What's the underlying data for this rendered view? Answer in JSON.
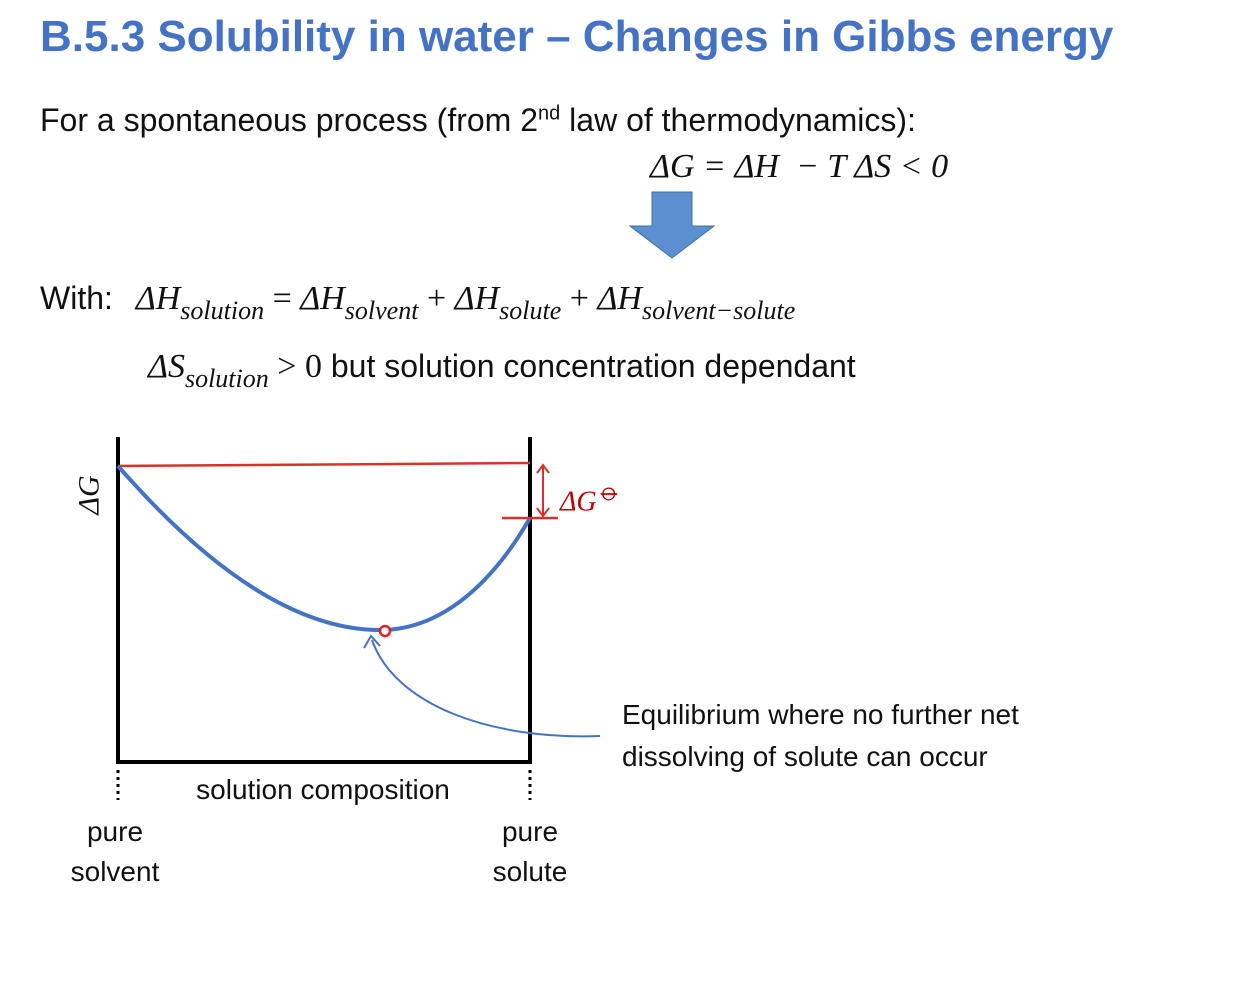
{
  "title": "B.5.3 Solubility in water – Changes in Gibbs energy",
  "intro": {
    "text": "For a spontaneous process (from 2",
    "sup": "nd",
    "after": " law of thermodynamics):"
  },
  "equation": "ΔG = ΔH  − T ΔS < 0",
  "with_label": "With:",
  "enthalpy": {
    "terms": [
      {
        "symbol": "ΔH",
        "sub": "solution"
      },
      {
        "symbol": "ΔH",
        "sub": "solvent"
      },
      {
        "symbol": "ΔH",
        "sub": "solute"
      },
      {
        "symbol": "ΔH",
        "sub": "solvent−solute"
      }
    ],
    "operators": [
      "=",
      "+",
      "+"
    ]
  },
  "entropy": {
    "symbol": "ΔS",
    "sub": "solution",
    "relation": "> 0",
    "text": "but solution concentration dependant"
  },
  "diagram": {
    "y_axis_label": "ΔG",
    "x_axis_label": "solution composition",
    "left_end": [
      "pure",
      "solvent"
    ],
    "right_end": [
      "pure",
      "solute"
    ],
    "delta_label": {
      "symbol": "ΔG",
      "sup": "⦵"
    },
    "annotation": [
      "Equilibrium where no further net",
      "dissolving of solute can occur"
    ]
  }
}
